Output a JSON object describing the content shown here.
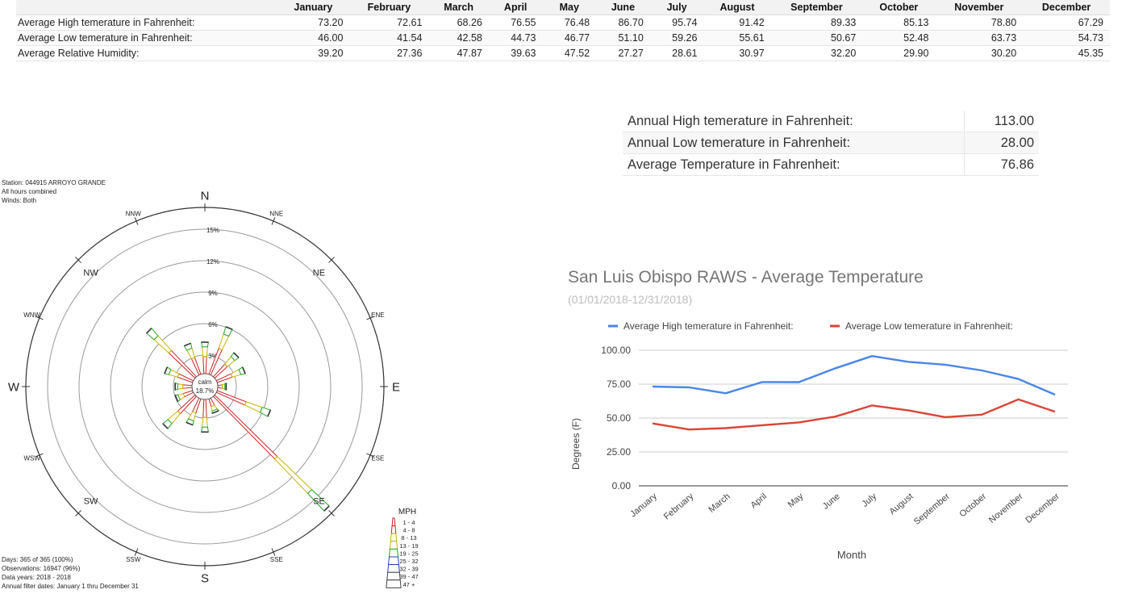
{
  "table": {
    "months": [
      "January",
      "February",
      "March",
      "April",
      "May",
      "June",
      "July",
      "August",
      "September",
      "October",
      "November",
      "December"
    ],
    "rows": [
      {
        "label": "Average High temerature in Fahrenheit:",
        "values": [
          "73.20",
          "72.61",
          "68.26",
          "76.55",
          "76.48",
          "86.70",
          "95.74",
          "91.42",
          "89.33",
          "85.13",
          "78.80",
          "67.29"
        ]
      },
      {
        "label": "Average Low temerature in Fahrenheit:",
        "values": [
          "46.00",
          "41.54",
          "42.58",
          "44.73",
          "46.77",
          "51.10",
          "59.26",
          "55.61",
          "50.67",
          "52.48",
          "63.73",
          "54.73"
        ]
      },
      {
        "label": "Average Relative Humidity:",
        "values": [
          "39.20",
          "27.36",
          "47.87",
          "39.63",
          "47.52",
          "27.27",
          "28.61",
          "30.97",
          "32.20",
          "29.90",
          "30.20",
          "45.35"
        ]
      }
    ]
  },
  "annual": [
    {
      "label": "Annual High temerature in Fahrenheit:",
      "value": "113.00"
    },
    {
      "label": "Annual Low temerature in Fahrenheit:",
      "value": "28.00"
    },
    {
      "label": "Average Temperature in Fahrenheit:",
      "value": "76.86"
    }
  ],
  "windrose": {
    "header": [
      "Station: 044915 ARROYO GRANDE",
      "All hours combined",
      "Winds: Both"
    ],
    "footer": [
      "Days: 365 of 365 (100%)",
      "Observations: 16947 (96%)",
      "Data years: 2018 - 2018",
      "Annual filter dates: January 1  thru  December 31"
    ],
    "calm_label": "calm",
    "calm_value": "18.7%",
    "ring_labels": [
      "3%",
      "6%",
      "9%",
      "12%",
      "15%"
    ],
    "ring_values": [
      3,
      6,
      9,
      12,
      15
    ],
    "directions": [
      "N",
      "NNE",
      "NE",
      "ENE",
      "E",
      "ESE",
      "SE",
      "SSE",
      "S",
      "SSW",
      "SW",
      "WSW",
      "W",
      "WNW",
      "NW",
      "NNW"
    ],
    "petals": [
      3.0,
      4.8,
      3.0,
      2.8,
      0.8,
      5.4,
      15.2,
      1.4,
      3.1,
      2.6,
      4.1,
      1.7,
      1.6,
      2.8,
      6.3,
      3.1
    ],
    "legend_title": "MPH",
    "legend_ranges": [
      "1 - 4",
      "4 - 8",
      "8 - 13",
      "13 - 19",
      "19 - 25",
      "25 - 32",
      "32 - 39",
      "39 - 47",
      "47 +"
    ],
    "colors": {
      "low": "#cc2222",
      "mid": "#c8b400",
      "high": "#22a822",
      "top": "#2244bb"
    }
  },
  "chart_data": {
    "type": "line",
    "title": "San Luis Obispo RAWS -  Average Temperature",
    "subtitle": "(01/01/2018-12/31/2018)",
    "xlabel": "Month",
    "ylabel": "Degrees (F)",
    "ylim": [
      0,
      100
    ],
    "yticks": [
      "0.00",
      "25.00",
      "50.00",
      "75.00",
      "100.00"
    ],
    "ytick_values": [
      0,
      25,
      50,
      75,
      100
    ],
    "categories": [
      "January",
      "February",
      "March",
      "April",
      "May",
      "June",
      "July",
      "August",
      "September",
      "October",
      "November",
      "December"
    ],
    "series": [
      {
        "name": "Average High temerature in Fahrenheit:",
        "color": "#4a86e8",
        "values": [
          73.2,
          72.61,
          68.26,
          76.55,
          76.48,
          86.7,
          95.74,
          91.42,
          89.33,
          85.13,
          78.8,
          67.29
        ]
      },
      {
        "name": "Average Low temerature in Fahrenheit:",
        "color": "#db4437",
        "values": [
          46.0,
          41.54,
          42.58,
          44.73,
          46.77,
          51.1,
          59.26,
          55.61,
          50.67,
          52.48,
          63.73,
          54.73
        ]
      }
    ],
    "grid": true,
    "legend_position": "top"
  }
}
